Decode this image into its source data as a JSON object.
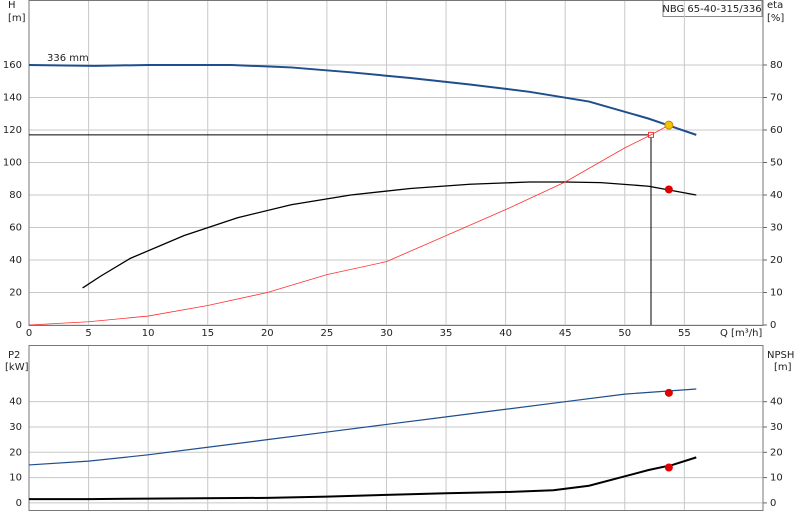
{
  "chart_data": [
    {
      "type": "line",
      "annotation": "NBG 65-40-315/336",
      "y_label": "H",
      "y_unit": "[m]",
      "y2_label": "eta",
      "y2_unit": "[%]",
      "x_label": "Q [m³/h]",
      "xlim": [
        0,
        61.6
      ],
      "xticks": [
        0,
        5,
        10,
        15,
        20,
        25,
        30,
        35,
        40,
        45,
        50,
        55
      ],
      "ylim": [
        0,
        200
      ],
      "yticks": [
        0,
        20,
        40,
        60,
        80,
        100,
        120,
        140,
        160
      ],
      "y2lim": [
        0,
        100
      ],
      "y2ticks": [
        0,
        10,
        20,
        30,
        40,
        50,
        60,
        70,
        80
      ],
      "grid": true,
      "series": [
        {
          "name": "336 mm",
          "color": "#1f4e8c",
          "width": 2,
          "x": [
            0,
            5.5,
            10,
            15,
            17,
            22,
            27,
            32,
            37,
            42,
            47,
            52,
            56
          ],
          "values": [
            160,
            159.5,
            160,
            160,
            160,
            158.5,
            155.5,
            152,
            148,
            143.5,
            137.5,
            127,
            117
          ]
        },
        {
          "color": "#000000",
          "width": 1.3,
          "axis": "y2",
          "x": [
            4.5,
            6,
            8.5,
            13,
            17.5,
            22,
            27,
            32,
            37,
            42,
            45,
            48,
            52,
            56
          ],
          "values": [
            11.4,
            15,
            20.5,
            27.5,
            33,
            37,
            40,
            42,
            43.3,
            44,
            44,
            43.8,
            42.7,
            40
          ]
        },
        {
          "color": "#ff3030",
          "width": 0.8,
          "x": [
            0,
            5,
            10,
            15,
            20,
            25,
            30,
            35,
            40,
            45,
            50,
            52.2,
            53.7
          ],
          "values": [
            0,
            2,
            5.5,
            12,
            20,
            31,
            39,
            55,
            71,
            88,
            109,
            117,
            123
          ]
        }
      ],
      "duty": {
        "x": 52.2,
        "y": 117
      },
      "points": [
        {
          "x": 53.7,
          "y": 123,
          "color": "#f5c400"
        },
        {
          "x": 53.7,
          "y": 41.7,
          "color": "#e00000",
          "axis": "y2"
        }
      ]
    },
    {
      "type": "line",
      "y_label": "P2",
      "y_unit": "[kW]",
      "y2_label": "NPSH",
      "y2_unit": "[m]",
      "xlim": [
        0,
        61.6
      ],
      "xticks": [
        0,
        5,
        10,
        15,
        20,
        25,
        30,
        35,
        40,
        45,
        50,
        55
      ],
      "ylim": [
        -2.8,
        62.4
      ],
      "yticks": [
        0,
        10,
        20,
        30,
        40
      ],
      "y2lim": [
        -2.8,
        62.4
      ],
      "y2ticks": [
        0,
        10,
        20,
        30,
        40
      ],
      "grid": true,
      "series": [
        {
          "color": "#1f4e8c",
          "width": 1.2,
          "x": [
            0,
            5,
            10,
            15,
            20,
            25,
            30,
            35,
            40,
            45,
            50,
            56
          ],
          "values": [
            15,
            16.5,
            19,
            22,
            25,
            28,
            31,
            34,
            37,
            40,
            43,
            45
          ]
        },
        {
          "color": "#000000",
          "width": 2,
          "axis": "y2",
          "x": [
            0,
            5,
            10,
            20,
            25,
            30,
            35,
            40,
            44,
            47,
            50,
            52,
            54,
            56
          ],
          "values": [
            1.5,
            1.5,
            1.7,
            2,
            2.5,
            3.2,
            3.8,
            4.3,
            5,
            6.8,
            10.5,
            13,
            15,
            18
          ]
        }
      ],
      "points": [
        {
          "x": 53.7,
          "y": 43.5,
          "color": "#e00000"
        },
        {
          "x": 53.7,
          "y": 14,
          "color": "#e00000",
          "axis": "y2"
        }
      ]
    }
  ]
}
